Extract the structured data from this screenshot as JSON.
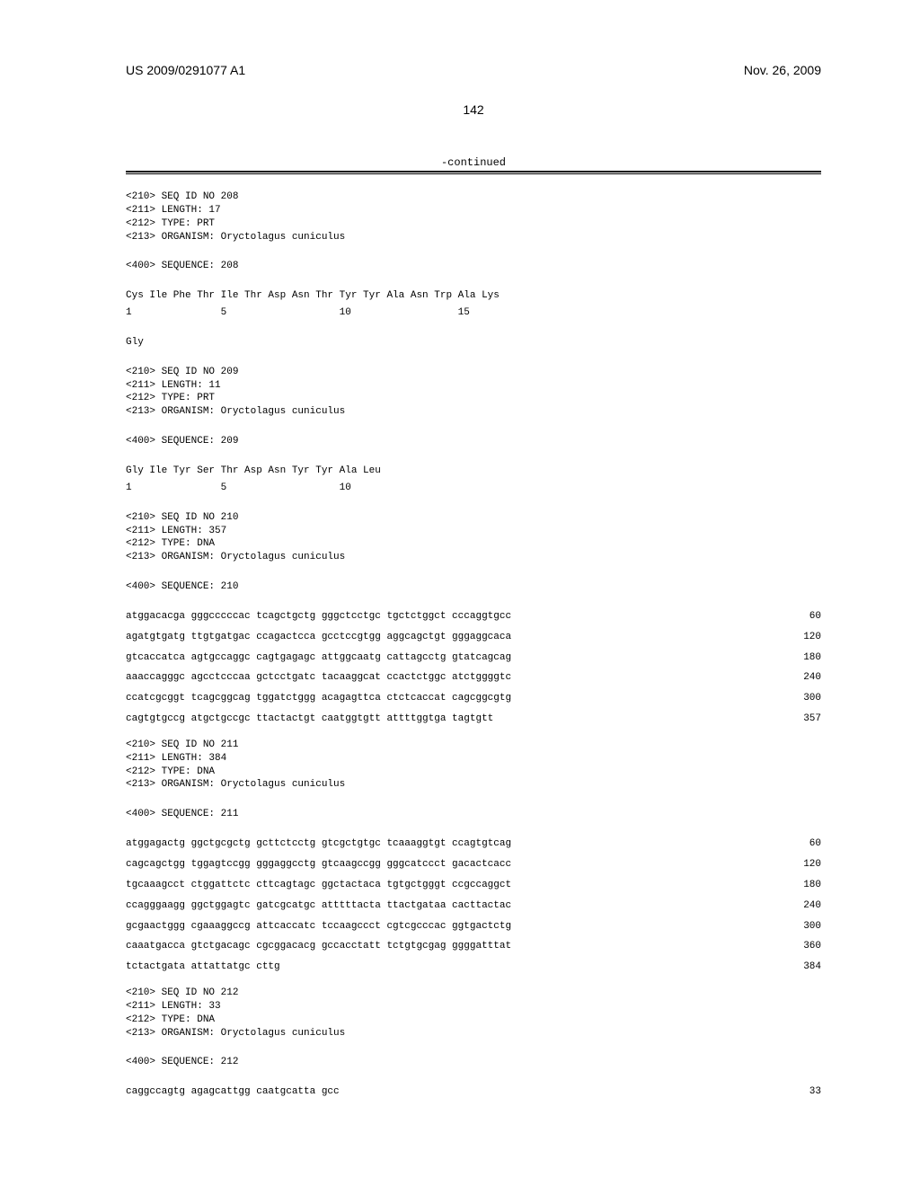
{
  "header": {
    "left": "US 2009/0291077 A1",
    "right": "Nov. 26, 2009"
  },
  "page_number": "142",
  "continued": "-continued",
  "seq208": {
    "h1": "<210> SEQ ID NO 208",
    "h2": "<211> LENGTH: 17",
    "h3": "<212> TYPE: PRT",
    "h4": "<213> ORGANISM: Oryctolagus cuniculus",
    "h5": "<400> SEQUENCE: 208",
    "line1": "Cys Ile Phe Thr Ile Thr Asp Asn Thr Tyr Tyr Ala Asn Trp Ala Lys",
    "nums": "1               5                   10                  15",
    "line2": "Gly"
  },
  "seq209": {
    "h1": "<210> SEQ ID NO 209",
    "h2": "<211> LENGTH: 11",
    "h3": "<212> TYPE: PRT",
    "h4": "<213> ORGANISM: Oryctolagus cuniculus",
    "h5": "<400> SEQUENCE: 209",
    "line1": "Gly Ile Tyr Ser Thr Asp Asn Tyr Tyr Ala Leu",
    "nums": "1               5                   10"
  },
  "seq210": {
    "h1": "<210> SEQ ID NO 210",
    "h2": "<211> LENGTH: 357",
    "h3": "<212> TYPE: DNA",
    "h4": "<213> ORGANISM: Oryctolagus cuniculus",
    "h5": "<400> SEQUENCE: 210",
    "l1": {
      "s": "atggacacga gggcccccac tcagctgctg gggctcctgc tgctctggct cccaggtgcc",
      "n": "  60"
    },
    "l2": {
      "s": "agatgtgatg ttgtgatgac ccagactcca gcctccgtgg aggcagctgt gggaggcaca",
      "n": " 120"
    },
    "l3": {
      "s": "gtcaccatca agtgccaggc cagtgagagc attggcaatg cattagcctg gtatcagcag",
      "n": " 180"
    },
    "l4": {
      "s": "aaaccagggc agcctcccaa gctcctgatc tacaaggcat ccactctggc atctggggtc",
      "n": " 240"
    },
    "l5": {
      "s": "ccatcgcggt tcagcggcag tggatctggg acagagttca ctctcaccat cagcggcgtg",
      "n": " 300"
    },
    "l6": {
      "s": "cagtgtgccg atgctgccgc ttactactgt caatggtgtt attttggtga tagtgtt",
      "n": " 357"
    }
  },
  "seq211": {
    "h1": "<210> SEQ ID NO 211",
    "h2": "<211> LENGTH: 384",
    "h3": "<212> TYPE: DNA",
    "h4": "<213> ORGANISM: Oryctolagus cuniculus",
    "h5": "<400> SEQUENCE: 211",
    "l1": {
      "s": "atggagactg ggctgcgctg gcttctcctg gtcgctgtgc tcaaaggtgt ccagtgtcag",
      "n": "  60"
    },
    "l2": {
      "s": "cagcagctgg tggagtccgg gggaggcctg gtcaagccgg gggcatccct gacactcacc",
      "n": " 120"
    },
    "l3": {
      "s": "tgcaaagcct ctggattctc cttcagtagc ggctactaca tgtgctgggt ccgccaggct",
      "n": " 180"
    },
    "l4": {
      "s": "ccagggaagg ggctggagtc gatcgcatgc atttttacta ttactgataa cacttactac",
      "n": " 240"
    },
    "l5": {
      "s": "gcgaactggg cgaaaggccg attcaccatc tccaagccct cgtcgcccac ggtgactctg",
      "n": " 300"
    },
    "l6": {
      "s": "caaatgacca gtctgacagc cgcggacacg gccacctatt tctgtgcgag ggggatttat",
      "n": " 360"
    },
    "l7": {
      "s": "tctactgata attattatgc cttg",
      "n": " 384"
    }
  },
  "seq212": {
    "h1": "<210> SEQ ID NO 212",
    "h2": "<211> LENGTH: 33",
    "h3": "<212> TYPE: DNA",
    "h4": "<213> ORGANISM: Oryctolagus cuniculus",
    "h5": "<400> SEQUENCE: 212",
    "l1": {
      "s": "caggccagtg agagcattgg caatgcatta gcc",
      "n": "  33"
    }
  }
}
